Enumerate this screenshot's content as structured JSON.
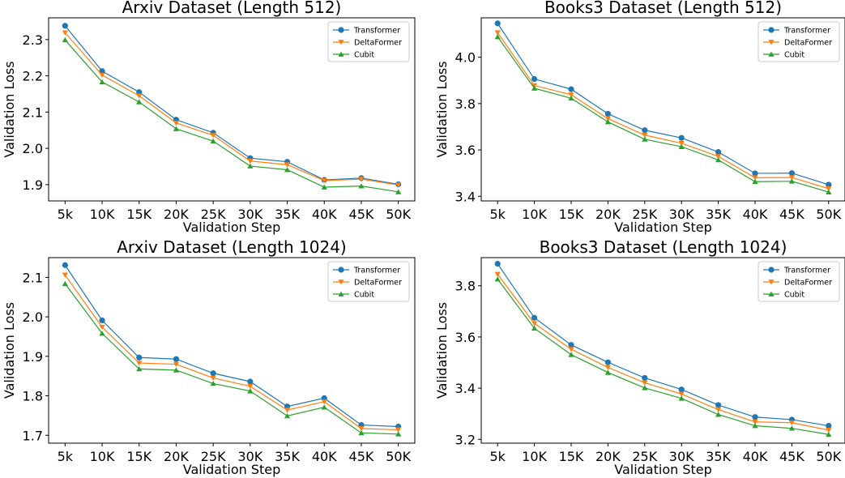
{
  "colors": {
    "Transformer": "#1f77b4",
    "DeltaFormer": "#ff7f0e",
    "Cubit": "#2ca02c"
  },
  "chart_data": [
    {
      "type": "line",
      "title": "Arxiv Dataset (Length 512)",
      "xlabel": "Validation Step",
      "ylabel": "Validation Loss",
      "categories": [
        "5k",
        "10K",
        "15K",
        "20K",
        "25K",
        "30K",
        "35K",
        "40K",
        "45K",
        "50K"
      ],
      "ylim": [
        1.855,
        2.36
      ],
      "yticks": [
        1.9,
        2.0,
        2.1,
        2.2,
        2.3
      ],
      "ytick_labels": [
        "1.9",
        "2.0",
        "2.1",
        "2.2",
        "2.3"
      ],
      "legend_position": "top-right",
      "grid": false,
      "series": [
        {
          "name": "Transformer",
          "marker": "circle",
          "values": [
            2.338,
            2.213,
            2.155,
            2.079,
            2.043,
            1.973,
            1.963,
            1.913,
            1.918,
            1.901
          ]
        },
        {
          "name": "DeltaFormer",
          "marker": "triangle-down",
          "values": [
            2.319,
            2.202,
            2.145,
            2.07,
            2.036,
            1.965,
            1.955,
            1.911,
            1.915,
            1.899
          ]
        },
        {
          "name": "Cubit",
          "marker": "triangle-up",
          "values": [
            2.299,
            2.183,
            2.128,
            2.054,
            2.02,
            1.951,
            1.941,
            1.893,
            1.896,
            1.88
          ]
        }
      ]
    },
    {
      "type": "line",
      "title": "Books3 Dataset (Length 512)",
      "xlabel": "Validation Step",
      "ylabel": "Validation Loss",
      "categories": [
        "5k",
        "10K",
        "15K",
        "20K",
        "25K",
        "30K",
        "35K",
        "40K",
        "45K",
        "50K"
      ],
      "ylim": [
        3.38,
        4.17
      ],
      "yticks": [
        3.4,
        3.6,
        3.8,
        4.0
      ],
      "ytick_labels": [
        "3.4",
        "3.6",
        "3.8",
        "4.0"
      ],
      "legend_position": "top-right",
      "grid": false,
      "series": [
        {
          "name": "Transformer",
          "marker": "circle",
          "values": [
            4.146,
            3.906,
            3.862,
            3.756,
            3.685,
            3.652,
            3.591,
            3.499,
            3.5,
            3.45
          ]
        },
        {
          "name": "DeltaFormer",
          "marker": "triangle-down",
          "values": [
            4.106,
            3.878,
            3.838,
            3.735,
            3.664,
            3.629,
            3.572,
            3.48,
            3.481,
            3.433
          ]
        },
        {
          "name": "Cubit",
          "marker": "triangle-up",
          "values": [
            4.088,
            3.866,
            3.823,
            3.721,
            3.646,
            3.614,
            3.557,
            3.463,
            3.465,
            3.418
          ]
        }
      ]
    },
    {
      "type": "line",
      "title": "Arxiv Dataset (Length 1024)",
      "xlabel": "Validation Step",
      "ylabel": "Validation Loss",
      "categories": [
        "5k",
        "10K",
        "15K",
        "20K",
        "25K",
        "30K",
        "35K",
        "40K",
        "45K",
        "50K"
      ],
      "ylim": [
        1.68,
        2.15
      ],
      "yticks": [
        1.7,
        1.8,
        1.9,
        2.0,
        2.1
      ],
      "ytick_labels": [
        "1.7",
        "1.8",
        "1.9",
        "2.0",
        "2.1"
      ],
      "legend_position": "top-right",
      "grid": false,
      "series": [
        {
          "name": "Transformer",
          "marker": "circle",
          "values": [
            2.131,
            1.991,
            1.897,
            1.893,
            1.857,
            1.836,
            1.773,
            1.794,
            1.726,
            1.722
          ]
        },
        {
          "name": "DeltaFormer",
          "marker": "triangle-down",
          "values": [
            2.106,
            1.974,
            1.883,
            1.88,
            1.845,
            1.824,
            1.764,
            1.785,
            1.717,
            1.714
          ]
        },
        {
          "name": "Cubit",
          "marker": "triangle-up",
          "values": [
            2.084,
            1.958,
            1.868,
            1.865,
            1.831,
            1.812,
            1.749,
            1.771,
            1.706,
            1.703
          ]
        }
      ]
    },
    {
      "type": "line",
      "title": "Books3 Dataset (Length 1024)",
      "xlabel": "Validation Step",
      "ylabel": "Validation Loss",
      "categories": [
        "5k",
        "10K",
        "15K",
        "20K",
        "25K",
        "30K",
        "35K",
        "40K",
        "45K",
        "50K"
      ],
      "ylim": [
        3.185,
        3.91
      ],
      "yticks": [
        3.2,
        3.4,
        3.6,
        3.8
      ],
      "ytick_labels": [
        "3.2",
        "3.4",
        "3.6",
        "3.8"
      ],
      "legend_position": "top-right",
      "grid": false,
      "series": [
        {
          "name": "Transformer",
          "marker": "circle",
          "values": [
            3.886,
            3.675,
            3.569,
            3.501,
            3.44,
            3.395,
            3.334,
            3.287,
            3.277,
            3.253
          ]
        },
        {
          "name": "DeltaFormer",
          "marker": "triangle-down",
          "values": [
            3.845,
            3.653,
            3.552,
            3.481,
            3.421,
            3.377,
            3.316,
            3.268,
            3.265,
            3.236
          ]
        },
        {
          "name": "Cubit",
          "marker": "triangle-up",
          "values": [
            3.826,
            3.634,
            3.531,
            3.461,
            3.401,
            3.36,
            3.297,
            3.253,
            3.243,
            3.219
          ]
        }
      ]
    }
  ]
}
